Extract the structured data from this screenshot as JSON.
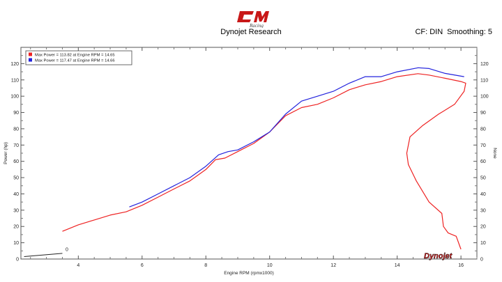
{
  "header": {
    "brand": "CM Racing",
    "title": "Dynojet Research",
    "cf_label": "CF: DIN",
    "smoothing_label": "Smoothing: 5"
  },
  "footer_logo": "Dynojet",
  "colors": {
    "run1": "#ee2222",
    "run2": "#2222dd",
    "grid": "#d9d9d9"
  },
  "chart_data": {
    "type": "line",
    "title": "Dynojet Research",
    "xlabel": "Engine RPM (rpmx1000)",
    "ylabel": "Power (hp)",
    "ylabel_right": "None",
    "xlim": [
      2.2,
      16.5
    ],
    "ylim": [
      0,
      130
    ],
    "x_ticks": [
      4,
      6,
      8,
      10,
      12,
      14,
      16
    ],
    "y_ticks": [
      0,
      10,
      20,
      30,
      40,
      50,
      60,
      70,
      80,
      90,
      100,
      110,
      120
    ],
    "grid": false,
    "legend_position": "top-left",
    "legend": [
      "Max Power = 113.82 at Engine RPM = 14.65",
      "Max Power = 117.47 at Engine RPM = 14.66"
    ],
    "annotation": "0",
    "series": [
      {
        "name": "Max Power = 113.82 at Engine RPM = 14.65",
        "x": [
          3.5,
          4.0,
          4.5,
          5.0,
          5.5,
          6.0,
          6.5,
          7.0,
          7.5,
          8.0,
          8.3,
          8.6,
          9.0,
          9.5,
          10.0,
          10.5,
          11.0,
          11.5,
          12.0,
          12.5,
          13.0,
          13.5,
          14.0,
          14.65,
          15.0,
          15.5,
          16.0,
          16.15,
          16.1,
          15.8,
          15.3,
          14.8,
          14.4,
          14.3,
          14.35,
          14.6,
          15.0,
          15.4,
          15.45,
          15.6,
          15.85,
          16.0
        ],
        "y": [
          17,
          21,
          24,
          27,
          29,
          33,
          38,
          43,
          48,
          55,
          61,
          62,
          66,
          71,
          78,
          88,
          93,
          95,
          99,
          104,
          107,
          109,
          112,
          113.82,
          113,
          111,
          109,
          108,
          103,
          95,
          89,
          82,
          75,
          65,
          58,
          48,
          35,
          28,
          20,
          16,
          14,
          6
        ],
        "color": "#ee2222"
      },
      {
        "name": "Max Power = 117.47 at Engine RPM = 14.66",
        "x": [
          5.6,
          6.0,
          6.5,
          7.0,
          7.5,
          8.0,
          8.4,
          8.7,
          9.0,
          9.5,
          10.0,
          10.5,
          11.0,
          11.5,
          12.0,
          12.5,
          13.0,
          13.5,
          14.0,
          14.66,
          15.0,
          15.5,
          16.1
        ],
        "y": [
          32,
          35,
          40,
          45,
          50,
          57,
          64,
          66,
          67,
          72,
          78,
          89,
          97,
          100,
          103,
          108,
          112,
          112,
          115,
          117.47,
          117,
          114,
          112
        ],
        "color": "#2222dd"
      }
    ]
  }
}
